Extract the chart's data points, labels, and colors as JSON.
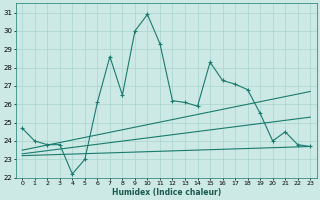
{
  "title": "",
  "xlabel": "Humidex (Indice chaleur)",
  "ylabel": "",
  "xlim": [
    -0.5,
    23.5
  ],
  "ylim": [
    22,
    31.5
  ],
  "yticks": [
    22,
    23,
    24,
    25,
    26,
    27,
    28,
    29,
    30,
    31
  ],
  "xticks": [
    0,
    1,
    2,
    3,
    4,
    5,
    6,
    7,
    8,
    9,
    10,
    11,
    12,
    13,
    14,
    15,
    16,
    17,
    18,
    19,
    20,
    21,
    22,
    23
  ],
  "bg_color": "#cce9e5",
  "grid_color": "#aad4cf",
  "line_color": "#1a7a6e",
  "lines": [
    {
      "x": [
        0,
        1,
        2,
        3,
        4,
        5,
        6,
        7,
        8,
        9,
        10,
        11,
        12,
        13,
        14,
        15,
        16,
        17,
        18,
        19,
        20,
        21,
        22,
        23
      ],
      "y": [
        24.7,
        24.0,
        23.8,
        23.8,
        22.2,
        23.0,
        26.1,
        28.6,
        26.5,
        30.0,
        30.9,
        29.3,
        26.2,
        26.1,
        25.9,
        28.3,
        27.3,
        27.1,
        26.8,
        25.5,
        24.0,
        24.5,
        23.8,
        23.7
      ],
      "marker": true
    },
    {
      "x": [
        0,
        23
      ],
      "y": [
        23.5,
        26.7
      ],
      "marker": false
    },
    {
      "x": [
        0,
        23
      ],
      "y": [
        23.3,
        25.3
      ],
      "marker": false
    },
    {
      "x": [
        0,
        23
      ],
      "y": [
        23.2,
        23.7
      ],
      "marker": false
    }
  ]
}
